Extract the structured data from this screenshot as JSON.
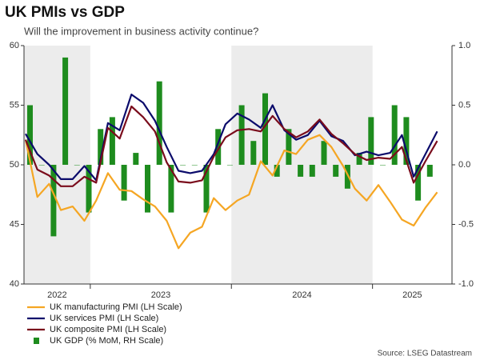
{
  "chart_data": {
    "type": "line_bar",
    "title": "UK PMIs vs GDP",
    "subtitle": "Will the improvement in business activity continue?",
    "source": "Source: LSEG Datastream",
    "categories": [
      null,
      null,
      null,
      null,
      null,
      null,
      null,
      null,
      null,
      null,
      null,
      null,
      null,
      null,
      null,
      null,
      null,
      null,
      null,
      null,
      null,
      null,
      null,
      null,
      null,
      null,
      null,
      null,
      null,
      null,
      null,
      null,
      null,
      null,
      null,
      null
    ],
    "x_labels": [
      "2022",
      "2023",
      "2024",
      "2025"
    ],
    "shade_alternate_years": true,
    "series": [
      {
        "name": "UK manufacturing PMI (LH Scale)",
        "color": "#f5a623",
        "kind": "line",
        "values": [
          52.1,
          47.3,
          48.4,
          46.2,
          46.5,
          45.3,
          47.0,
          49.3,
          47.9,
          47.8,
          47.1,
          46.5,
          45.3,
          43.0,
          44.3,
          44.8,
          47.2,
          46.2,
          47.0,
          47.5,
          50.3,
          49.1,
          51.2,
          50.9,
          52.1,
          52.5,
          51.5,
          49.9,
          48.0,
          47.0,
          48.3,
          46.9,
          45.4,
          44.9,
          46.4,
          47.7
        ]
      },
      {
        "name": "UK services PMI (LH Scale)",
        "color": "#0b0b6b",
        "kind": "line",
        "values": [
          52.6,
          50.9,
          50.0,
          48.8,
          48.8,
          49.9,
          48.7,
          53.5,
          52.9,
          55.9,
          55.2,
          53.7,
          51.5,
          49.5,
          49.3,
          49.5,
          50.9,
          53.4,
          54.3,
          53.8,
          53.1,
          55.0,
          52.9,
          52.1,
          52.5,
          53.7,
          52.4,
          52.0,
          50.8,
          51.1,
          50.8,
          51.0,
          52.5,
          49.0,
          50.9,
          52.8
        ]
      },
      {
        "name": "UK composite PMI (LH Scale)",
        "color": "#7a0c1c",
        "kind": "line",
        "values": [
          52.1,
          49.6,
          49.1,
          48.2,
          48.2,
          49.0,
          48.5,
          53.1,
          52.2,
          54.9,
          54.0,
          52.8,
          50.2,
          48.6,
          48.5,
          48.7,
          50.7,
          52.3,
          52.9,
          53.0,
          52.8,
          54.1,
          53.0,
          52.3,
          52.8,
          53.8,
          52.6,
          51.8,
          50.9,
          50.4,
          50.6,
          50.5,
          51.5,
          48.5,
          50.3,
          52.0
        ]
      },
      {
        "name": "UK GDP (% MoM, RH Scale)",
        "color": "#1e8c1e",
        "kind": "bar",
        "axis": "y2",
        "values": [
          0.5,
          0.0,
          -0.6,
          0.9,
          0.0,
          -0.4,
          0.3,
          0.4,
          -0.3,
          0.1,
          -0.4,
          0.7,
          -0.4,
          0.0,
          0.0,
          -0.4,
          0.3,
          0.0,
          0.5,
          0.2,
          0.6,
          -0.1,
          0.3,
          -0.1,
          -0.1,
          0.2,
          -0.1,
          -0.2,
          0.1,
          0.4,
          0.0,
          0.5,
          0.4,
          -0.3,
          -0.1,
          null
        ]
      }
    ],
    "ylim": [
      40,
      60
    ],
    "yticks": [
      40,
      45,
      50,
      55,
      60
    ],
    "y2lim": [
      -1.0,
      1.0
    ],
    "y2ticks": [
      {
        "value": -1.0,
        "label": "-1.0"
      },
      {
        "value": -0.5,
        "label": "-0.5"
      },
      {
        "value": 0.0,
        "label": "0.0"
      },
      {
        "value": 0.5,
        "label": "0.5"
      },
      {
        "value": 1.0,
        "label": "1.0"
      }
    ]
  }
}
